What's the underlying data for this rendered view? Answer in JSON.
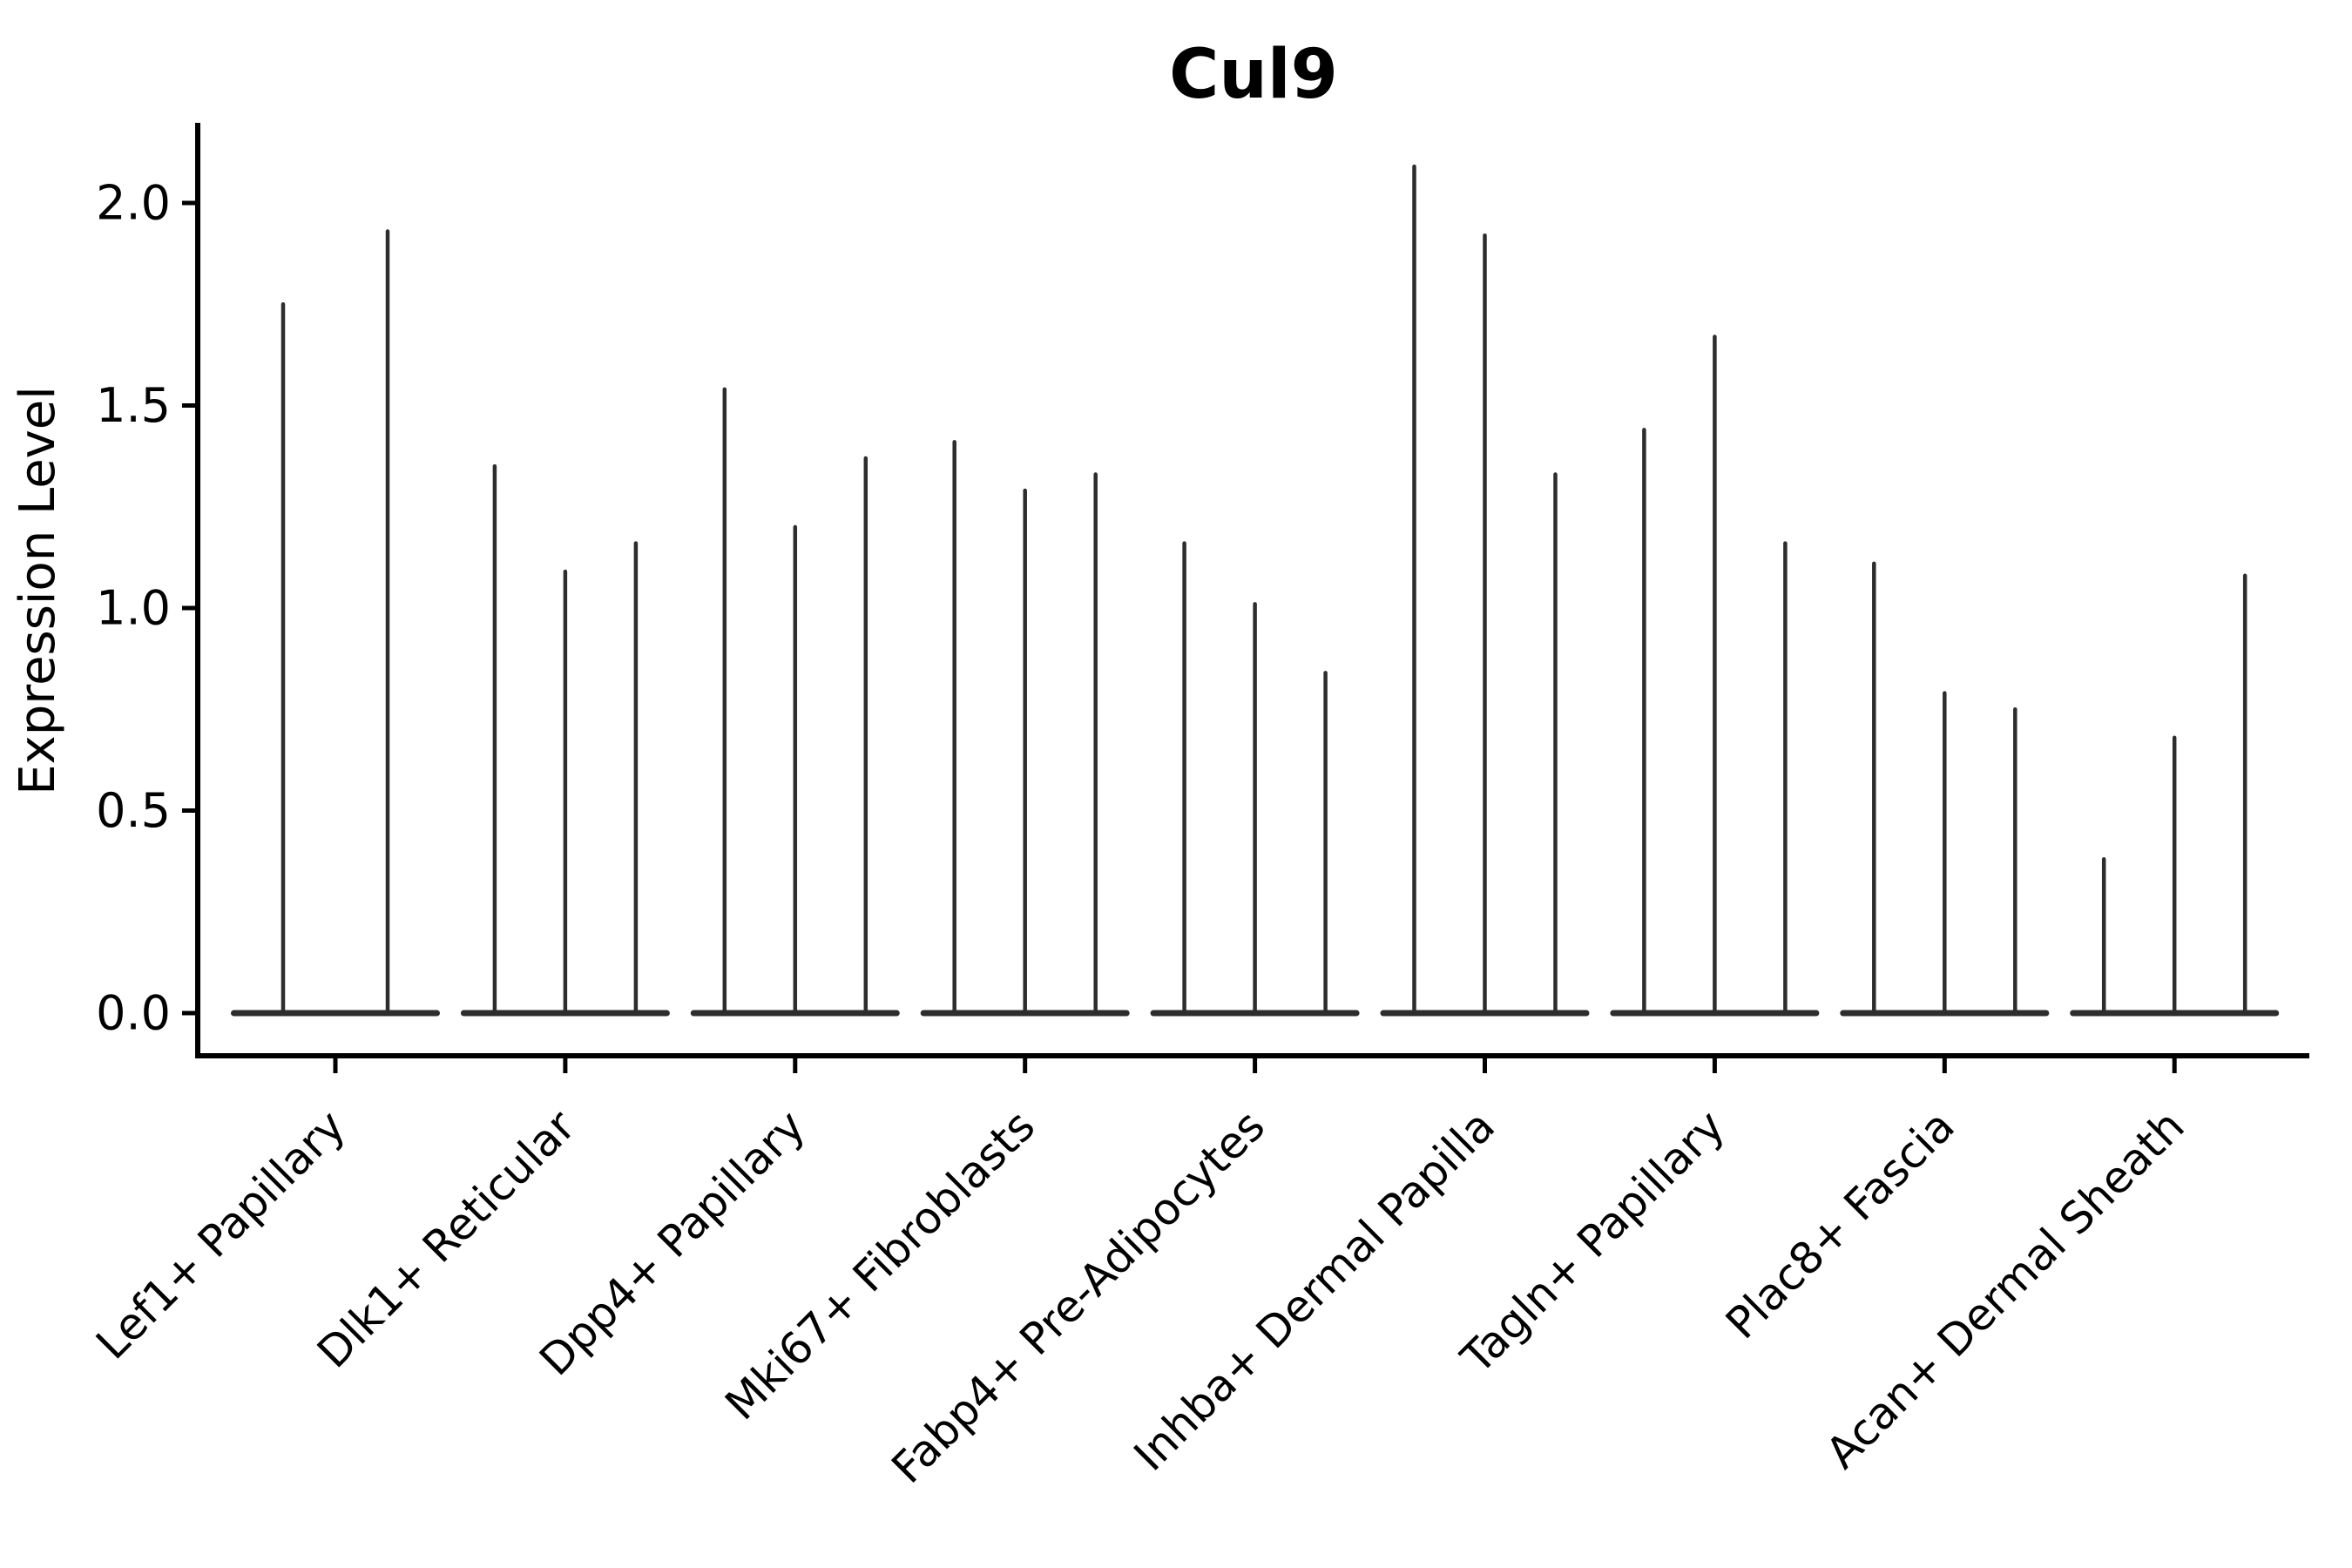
{
  "chart_data": {
    "type": "violin",
    "title": "Cul9",
    "ylabel": "Expression Level",
    "xlabel": "",
    "background": "#ffffff",
    "grid": false,
    "legend": "none",
    "style": "needle-thin black violins on white; each violin has bulk mass at 0 (wide flat base) and a single thin spike to its maximum",
    "ylim": [
      -0.11,
      2.2
    ],
    "yticks": [
      {
        "value": 0.0,
        "label": "0.0"
      },
      {
        "value": 0.5,
        "label": "0.5"
      },
      {
        "value": 1.0,
        "label": "1.0"
      },
      {
        "value": 1.5,
        "label": "1.5"
      },
      {
        "value": 2.0,
        "label": "2.0"
      }
    ],
    "categories": [
      "Lef1+ Papillary",
      "Dlk1+ Reticular",
      "Dpp4+ Papillary",
      "Mki67+ Fibroblasts",
      "Fabp4+ Pre-Adipocytes",
      "Inhba+ Dermal Papilla",
      "Tagln+ Papillary",
      "Plac8+ Fascia",
      "Acan+ Dermal Sheath"
    ],
    "groups": [
      {
        "category": "Lef1+ Papillary",
        "spike_maxima": [
          1.75,
          1.93
        ]
      },
      {
        "category": "Dlk1+ Reticular",
        "spike_maxima": [
          1.35,
          1.09,
          1.16
        ]
      },
      {
        "category": "Dpp4+ Papillary",
        "spike_maxima": [
          1.54,
          1.2,
          1.37
        ]
      },
      {
        "category": "Mki67+ Fibroblasts",
        "spike_maxima": [
          1.41,
          1.29,
          1.33
        ]
      },
      {
        "category": "Fabp4+ Pre-Adipocytes",
        "spike_maxima": [
          1.16,
          1.01,
          0.84
        ]
      },
      {
        "category": "Inhba+ Dermal Papilla",
        "spike_maxima": [
          2.09,
          1.92,
          1.33
        ]
      },
      {
        "category": "Tagln+ Papillary",
        "spike_maxima": [
          1.44,
          1.67,
          1.16
        ]
      },
      {
        "category": "Plac8+ Fascia",
        "spike_maxima": [
          1.11,
          0.79,
          0.75
        ]
      },
      {
        "category": "Acan+ Dermal Sheath",
        "spike_maxima": [
          0.38,
          0.68,
          1.08
        ]
      }
    ],
    "colors": {
      "violin": "#2d2d2d",
      "axis": "#000000",
      "text": "#000000",
      "background": "#ffffff"
    }
  }
}
